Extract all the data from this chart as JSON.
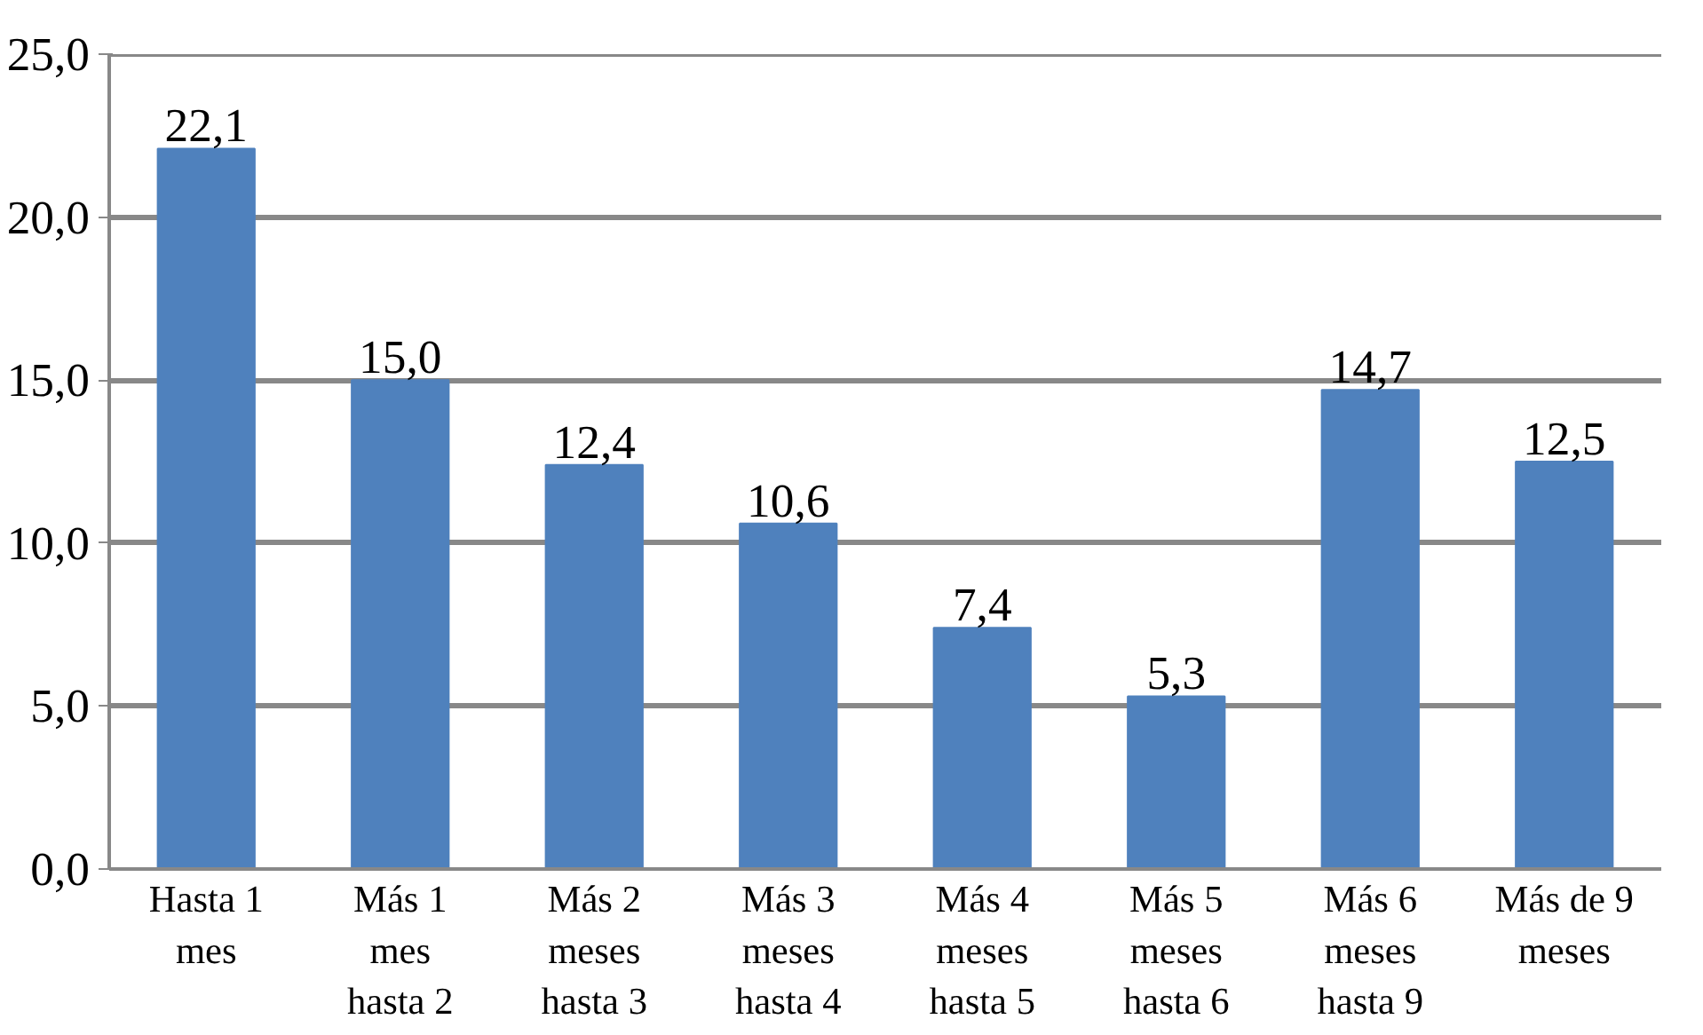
{
  "chart_data": {
    "type": "bar",
    "categories": [
      "Hasta 1\nmes",
      "Más 1\nmes\nhasta 2",
      "Más 2\nmeses\nhasta 3",
      "Más 3\nmeses\nhasta 4",
      "Más 4\nmeses\nhasta 5",
      "Más 5\nmeses\nhasta 6",
      "Más 6\nmeses\nhasta 9",
      "Más de 9\nmeses"
    ],
    "values": [
      22.1,
      15.0,
      12.4,
      10.6,
      7.4,
      5.3,
      14.7,
      12.5
    ],
    "value_labels": [
      "22,1",
      "15,0",
      "12,4",
      "10,6",
      "7,4",
      "5,3",
      "14,7",
      "12,5"
    ],
    "color": "#4f81bd",
    "ylim": [
      0,
      25
    ],
    "yticks": [
      {
        "value": 0,
        "label": "0,0"
      },
      {
        "value": 5,
        "label": "5,0"
      },
      {
        "value": 10,
        "label": "10,0"
      },
      {
        "value": 15,
        "label": "15,0"
      },
      {
        "value": 20,
        "label": "20,0"
      },
      {
        "value": 25,
        "label": "25,0"
      }
    ],
    "grid": "y"
  }
}
